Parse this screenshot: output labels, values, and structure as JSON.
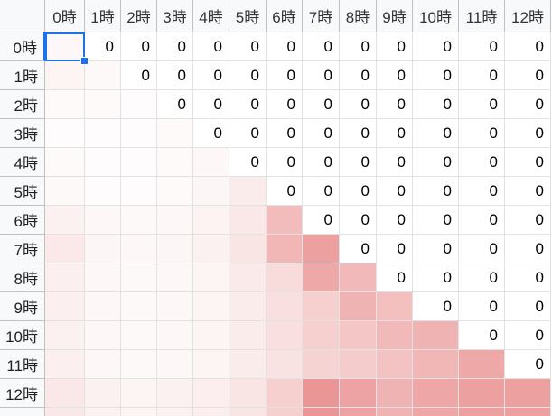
{
  "sheet": {
    "col_headers": [
      "0時",
      "1時",
      "2時",
      "3時",
      "4時",
      "5時",
      "6時",
      "7時",
      "8時",
      "9時",
      "10時",
      "11時",
      "12時"
    ],
    "row_headers": [
      "0時",
      "1時",
      "2時",
      "3時",
      "4時",
      "5時",
      "6時",
      "7時",
      "8時",
      "9時",
      "10時",
      "11時",
      "12時"
    ],
    "colors": {
      "heat": "#e06060",
      "selection": "#1a73e8",
      "grid": "#e2e2e2",
      "header_bg": "#f8f9fa"
    },
    "heat_levels": [
      [
        0.05,
        null,
        null,
        null,
        null,
        null,
        null,
        null,
        null,
        null,
        null,
        null,
        null
      ],
      [
        0.07,
        0.04,
        null,
        null,
        null,
        null,
        null,
        null,
        null,
        null,
        null,
        null,
        null
      ],
      [
        0.03,
        0.03,
        0.02,
        null,
        null,
        null,
        null,
        null,
        null,
        null,
        null,
        null,
        null
      ],
      [
        0.02,
        0.02,
        0.02,
        0.03,
        null,
        null,
        null,
        null,
        null,
        null,
        null,
        null,
        null
      ],
      [
        0.03,
        0.02,
        0.02,
        0.03,
        0.05,
        null,
        null,
        null,
        null,
        null,
        null,
        null,
        null
      ],
      [
        0.04,
        0.02,
        0.02,
        0.03,
        0.06,
        0.12,
        null,
        null,
        null,
        null,
        null,
        null,
        null
      ],
      [
        0.09,
        0.05,
        0.04,
        0.05,
        0.08,
        0.15,
        0.42,
        null,
        null,
        null,
        null,
        null,
        null
      ],
      [
        0.14,
        0.06,
        0.05,
        0.06,
        0.09,
        0.16,
        0.45,
        0.6,
        null,
        null,
        null,
        null,
        null
      ],
      [
        0.1,
        0.05,
        0.04,
        0.05,
        0.07,
        0.13,
        0.22,
        0.55,
        0.44,
        null,
        null,
        null,
        null
      ],
      [
        0.1,
        0.05,
        0.04,
        0.05,
        0.07,
        0.12,
        0.2,
        0.3,
        0.48,
        0.4,
        null,
        null,
        null
      ],
      [
        0.09,
        0.05,
        0.04,
        0.05,
        0.07,
        0.12,
        0.2,
        0.3,
        0.36,
        0.44,
        0.48,
        null,
        null
      ],
      [
        0.1,
        0.05,
        0.04,
        0.05,
        0.07,
        0.12,
        0.18,
        0.28,
        0.32,
        0.38,
        0.46,
        0.55,
        null
      ],
      [
        0.15,
        0.09,
        0.07,
        0.09,
        0.11,
        0.16,
        0.3,
        0.66,
        0.58,
        0.48,
        0.56,
        0.6,
        0.6
      ]
    ],
    "zero_value": "0"
  }
}
